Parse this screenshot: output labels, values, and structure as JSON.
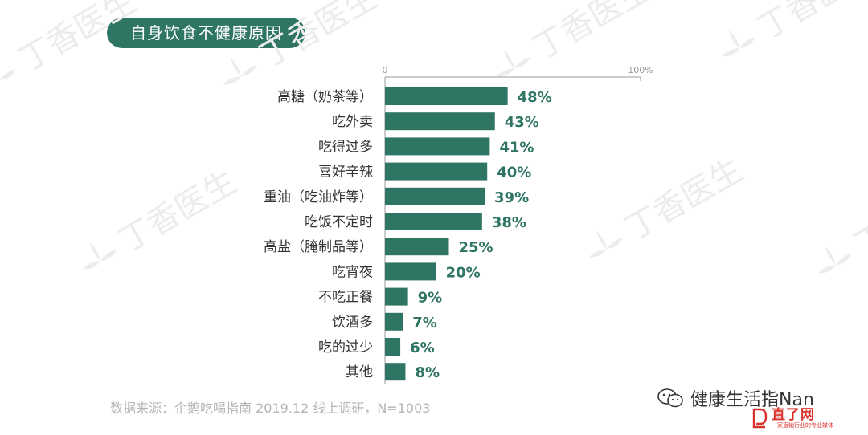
{
  "colors": {
    "accent": "#2f7563",
    "watermark": "#ececec",
    "axis": "#999999",
    "label": "#333333",
    "source": "#b5b5b5",
    "logo_red": "#d9322b"
  },
  "watermark": {
    "text": "丁香医生"
  },
  "footer": {
    "source": "数据来源：企鹅吃喝指南 2019.12 线上调研，N=1003",
    "account": "健康生活指Nan",
    "account_icon": "wechat-icon",
    "site_name": "直了网",
    "site_tagline": "一家直销行业的专业媒体"
  },
  "chart_data": {
    "type": "bar",
    "orientation": "horizontal",
    "title": "自身饮食不健康原因",
    "xlim": [
      0,
      100
    ],
    "tick_labels": [
      "0",
      "100%"
    ],
    "grid": false,
    "legend": "none",
    "categories": [
      "高糖（奶茶等）",
      "吃外卖",
      "吃得过多",
      "喜好辛辣",
      "重油（吃油炸等）",
      "吃饭不定时",
      "高盐（腌制品等）",
      "吃宵夜",
      "不吃正餐",
      "饮酒多",
      "吃的过少",
      "其他"
    ],
    "values": [
      48,
      43,
      41,
      40,
      39,
      38,
      25,
      20,
      9,
      7,
      6,
      8
    ],
    "value_labels": [
      "48%",
      "43%",
      "41%",
      "40%",
      "39%",
      "38%",
      "25%",
      "20%",
      "9%",
      "7%",
      "6%",
      "8%"
    ]
  }
}
